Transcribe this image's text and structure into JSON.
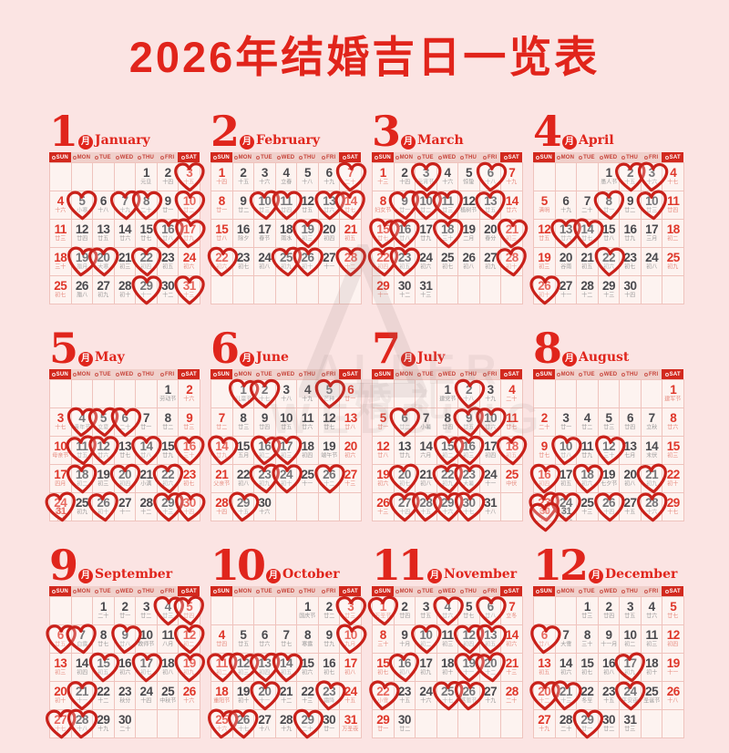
{
  "title": "2026年结婚吉日一览表",
  "month_badge": "月",
  "weekdays": [
    "SUN",
    "MON",
    "TUE",
    "WED",
    "THU",
    "FRI",
    "SAT"
  ],
  "watermark": {
    "logo": "triangle-A-logo",
    "line1": "ALLER WEDDING",
    "line2": "婚礼"
  },
  "colors": {
    "background": "#fbe4e3",
    "accent_red": "#e1241b",
    "heart_red": "#c9211a",
    "day_red": "#df372a",
    "day_dark": "#4a4a4e",
    "lunar_gray": "#9a9a9a",
    "cell_bg": "#fdf3f0",
    "cell_border": "#efc3bd",
    "dow_solid_bg": "#d2291e",
    "dow_light_bg": "#f0d0cb"
  },
  "months": [
    {
      "num": "1",
      "name": "January",
      "first_dow": 4,
      "lunar": [
        "元旦",
        "十四",
        "十五",
        "十六",
        "小寒",
        "十八",
        "十九",
        "二十",
        "廿一",
        "廿二",
        "廿三",
        "廿四",
        "廿五",
        "廿六",
        "廿七",
        "廿八",
        "廿九",
        "三十",
        "腊月",
        "大寒",
        "初三",
        "初四",
        "初五",
        "初六",
        "初七",
        "腊八",
        "初九",
        "初十",
        "十一",
        "十二",
        "十三"
      ],
      "hearts": [
        3,
        5,
        7,
        8,
        10,
        16,
        17,
        19,
        20,
        22,
        29,
        31
      ]
    },
    {
      "num": "2",
      "name": "February",
      "first_dow": 0,
      "lunar": [
        "十四",
        "十五",
        "十六",
        "立春",
        "十八",
        "十九",
        "二十",
        "廿一",
        "廿二",
        "廿三",
        "廿四",
        "廿五",
        "廿六",
        "廿七",
        "廿八",
        "除夕",
        "春节",
        "雨水",
        "初三",
        "初四",
        "初五",
        "初六",
        "初七",
        "初八",
        "初九",
        "初十",
        "十一",
        "十二"
      ],
      "hearts": [
        7,
        10,
        11,
        13,
        14,
        19,
        22,
        25,
        26,
        28
      ]
    },
    {
      "num": "3",
      "name": "March",
      "first_dow": 0,
      "lunar": [
        "十三",
        "十四",
        "元宵节",
        "十六",
        "惊蛰",
        "十八",
        "十九",
        "妇女节",
        "廿一",
        "廿二",
        "廿三",
        "植树节",
        "廿五",
        "廿六",
        "廿七",
        "廿八",
        "廿九",
        "三十",
        "二月",
        "春分",
        "初三",
        "初四",
        "初五",
        "初六",
        "初七",
        "初八",
        "初九",
        "初十",
        "十一",
        "十二",
        "十三"
      ],
      "hearts": [
        3,
        6,
        9,
        10,
        11,
        13,
        15,
        16,
        18,
        21,
        22,
        23,
        28
      ]
    },
    {
      "num": "4",
      "name": "April",
      "first_dow": 3,
      "lunar": [
        "愚人节",
        "十五",
        "十六",
        "十七",
        "清明",
        "十九",
        "二十",
        "廿一",
        "廿二",
        "廿三",
        "廿四",
        "廿五",
        "廿六",
        "廿七",
        "廿八",
        "廿九",
        "三月",
        "初二",
        "初三",
        "谷雨",
        "初五",
        "初六",
        "初七",
        "初八",
        "初九",
        "初十",
        "十一",
        "十二",
        "十三",
        "十四"
      ],
      "hearts": [
        2,
        3,
        8,
        10,
        13,
        14,
        22,
        26
      ]
    },
    {
      "num": "5",
      "name": "May",
      "first_dow": 5,
      "lunar": [
        "劳动节",
        "十六",
        "十七",
        "青年节",
        "立夏",
        "二十",
        "廿一",
        "廿二",
        "廿三",
        "母亲节",
        "廿五",
        "廿六",
        "廿七",
        "廿八",
        "廿九",
        "三十",
        "四月",
        "初二",
        "初三",
        "初四",
        "小满",
        "初六",
        "初七",
        "初八",
        "初九",
        "初十",
        "十一",
        "十二",
        "十三",
        "十四",
        "十五"
      ],
      "hearts": [
        4,
        5,
        6,
        11,
        12,
        14,
        16,
        18,
        20,
        22,
        24,
        26,
        29,
        30
      ],
      "extras": [
        {
          "day": 31,
          "lunar": "十五",
          "under": 24,
          "heart": false
        }
      ]
    },
    {
      "num": "6",
      "name": "June",
      "first_dow": 1,
      "lunar": [
        "儿童节",
        "十七",
        "十八",
        "十九",
        "芒种",
        "廿一",
        "廿二",
        "廿三",
        "廿四",
        "廿五",
        "廿六",
        "廿七",
        "廿八",
        "廿九",
        "五月",
        "初二",
        "初三",
        "初四",
        "端午节",
        "初六",
        "父亲节",
        "初八",
        "初九",
        "初十",
        "十一",
        "十二",
        "十三",
        "十四",
        "十五",
        "十六"
      ],
      "hearts": [
        1,
        2,
        5,
        14,
        16,
        17,
        23,
        24,
        26,
        29
      ]
    },
    {
      "num": "7",
      "name": "July",
      "first_dow": 3,
      "lunar": [
        "建党节",
        "十八",
        "十九",
        "二十",
        "廿一",
        "廿二",
        "小暑",
        "廿四",
        "廿五",
        "廿六",
        "廿七",
        "廿八",
        "廿九",
        "六月",
        "初二",
        "初三",
        "初四",
        "初五",
        "初六",
        "初七",
        "初八",
        "初九",
        "大暑",
        "十一",
        "中伏",
        "十三",
        "十四",
        "十五",
        "十六",
        "十七",
        "十八"
      ],
      "hearts": [
        2,
        6,
        9,
        10,
        15,
        16,
        18,
        20,
        22,
        23,
        27,
        28,
        29,
        30
      ]
    },
    {
      "num": "8",
      "name": "August",
      "first_dow": 6,
      "lunar": [
        "建军节",
        "二十",
        "廿一",
        "廿二",
        "廿三",
        "廿四",
        "立秋",
        "廿六",
        "廿七",
        "廿八",
        "廿九",
        "三十",
        "七月",
        "末伏",
        "初三",
        "初四",
        "初五",
        "初六",
        "七夕节",
        "初八",
        "初九",
        "初十",
        "处暑",
        "十二",
        "十三",
        "十四",
        "十五",
        "十六",
        "十七",
        "十八",
        "十九"
      ],
      "hearts": [
        10,
        12,
        16,
        18,
        21,
        23,
        24,
        26,
        28
      ],
      "extras": [
        {
          "day": 30,
          "lunar": "十八",
          "under": 23,
          "heart": true
        },
        {
          "day": 31,
          "lunar": "十九",
          "under": 24,
          "heart": false
        }
      ]
    },
    {
      "num": "9",
      "name": "September",
      "first_dow": 2,
      "lunar": [
        "二十",
        "廿一",
        "廿二",
        "廿三",
        "廿四",
        "廿五",
        "白露",
        "廿七",
        "廿八",
        "教师节",
        "八月",
        "初二",
        "初三",
        "初四",
        "初五",
        "初六",
        "初七",
        "初八",
        "初九",
        "初十",
        "十一",
        "十二",
        "秋分",
        "十四",
        "中秋节",
        "十六",
        "十七",
        "十八",
        "十九",
        "二十"
      ],
      "hearts": [
        4,
        5,
        6,
        7,
        9,
        12,
        15,
        17,
        19,
        21,
        27,
        28
      ]
    },
    {
      "num": "10",
      "name": "October",
      "first_dow": 4,
      "lunar": [
        "国庆节",
        "廿二",
        "廿三",
        "廿四",
        "廿五",
        "廿六",
        "廿七",
        "寒露",
        "廿九",
        "九月",
        "初二",
        "初三",
        "初四",
        "初五",
        "初六",
        "初七",
        "初八",
        "重阳节",
        "初十",
        "十一",
        "十二",
        "十三",
        "霜降",
        "十五",
        "十六",
        "十七",
        "十八",
        "十九",
        "二十",
        "廿一",
        "万圣夜"
      ],
      "hearts": [
        3,
        10,
        11,
        12,
        13,
        14,
        20,
        23,
        25,
        26,
        29
      ]
    },
    {
      "num": "11",
      "name": "November",
      "first_dow": 0,
      "lunar": [
        "万圣节",
        "廿四",
        "廿五",
        "廿六",
        "廿七",
        "廿八",
        "立冬",
        "三十",
        "十月",
        "初二",
        "初三",
        "初四",
        "初五",
        "初六",
        "初七",
        "初八",
        "初九",
        "初十",
        "十一",
        "十二",
        "十三",
        "小雪",
        "十五",
        "十六",
        "十七",
        "感恩节",
        "十九",
        "二十",
        "廿一",
        "廿二"
      ],
      "hearts": [
        1,
        4,
        6,
        10,
        12,
        13,
        16,
        19,
        20,
        22,
        25,
        26
      ]
    },
    {
      "num": "12",
      "name": "December",
      "first_dow": 2,
      "lunar": [
        "廿三",
        "廿四",
        "廿五",
        "廿六",
        "廿七",
        "廿八",
        "大雪",
        "三十",
        "十一月",
        "初二",
        "初三",
        "初四",
        "初五",
        "初六",
        "初七",
        "初八",
        "初九",
        "初十",
        "十一",
        "十二",
        "十三",
        "冬至",
        "十五",
        "平安夜",
        "圣诞节",
        "十八",
        "十九",
        "二十",
        "廿一",
        "廿二",
        "廿三"
      ],
      "hearts": [
        6,
        17,
        20,
        21,
        24,
        29
      ]
    }
  ]
}
